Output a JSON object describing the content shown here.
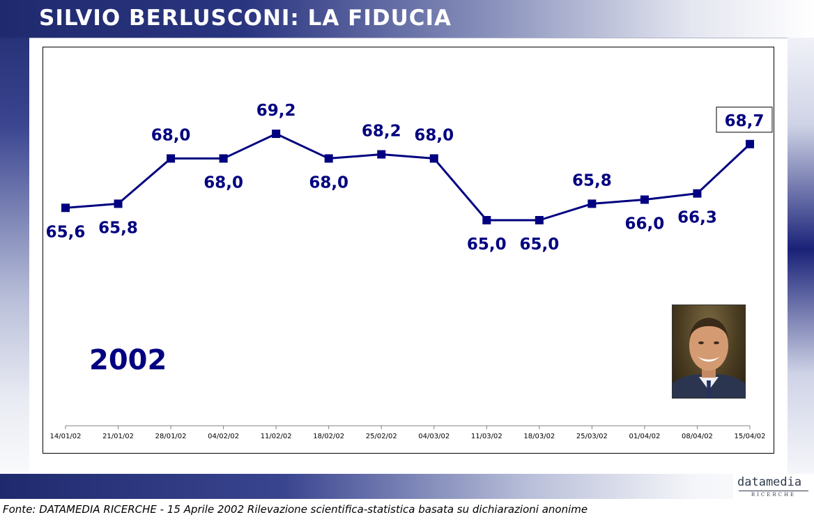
{
  "header": {
    "title": "SILVIO BERLUSCONI: LA FIDUCIA"
  },
  "year_label": "2002",
  "footer": {
    "source": "Fonte: DATAMEDIA RICERCHE - 15 Aprile 2002 Rilevazione scientifica-statistica basata su dichiarazioni anonime"
  },
  "logo": {
    "name": "datamedia",
    "subtitle": "RICERCHE"
  },
  "colors": {
    "series": "#000080",
    "title_text": "#ffffff"
  },
  "chart_data": {
    "type": "line",
    "x": [
      "14/01/02",
      "21/01/02",
      "28/01/02",
      "04/02/02",
      "11/02/02",
      "18/02/02",
      "25/02/02",
      "04/03/02",
      "11/03/02",
      "18/03/02",
      "25/03/02",
      "01/04/02",
      "08/04/02",
      "15/04/02"
    ],
    "series": [
      {
        "values": [
          65.6,
          65.8,
          68.0,
          68.0,
          69.2,
          68.0,
          68.2,
          68.0,
          65.0,
          65.0,
          65.8,
          66.0,
          66.3,
          68.7
        ],
        "labels": [
          "65,6",
          "65,8",
          "68,0",
          "68,0",
          "69,2",
          "68,0",
          "68,2",
          "68,0",
          "65,0",
          "65,0",
          "65,8",
          "66,0",
          "66,3",
          "68,7"
        ]
      }
    ],
    "ylim": [
      60,
      71
    ],
    "grid": false,
    "legend": "none",
    "highlighted_point": "15/04/02"
  }
}
